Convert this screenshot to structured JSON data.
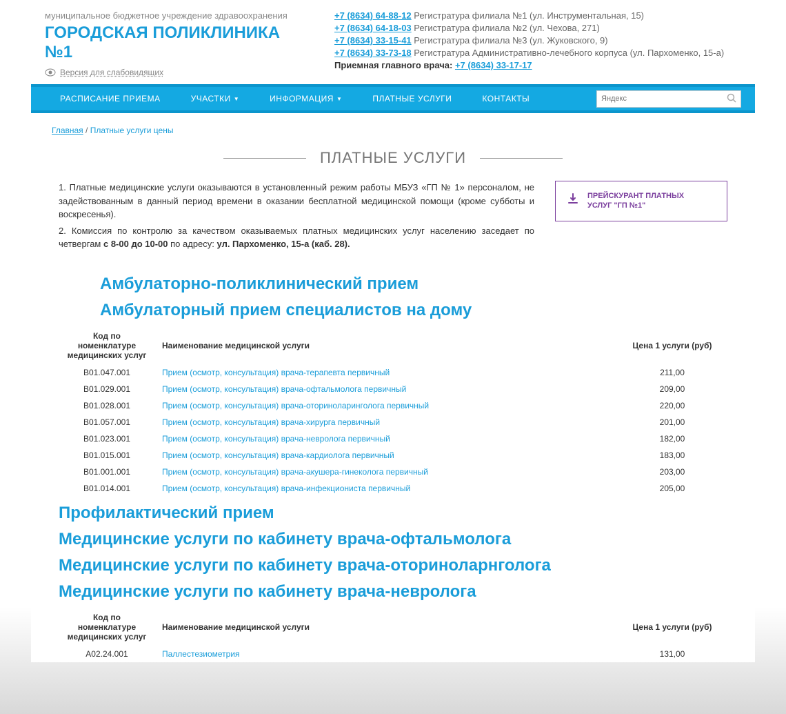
{
  "header": {
    "org_type": "муниципальное бюджетное учреждение здравоохранения",
    "org_name": "ГОРОДСКАЯ ПОЛИКЛИНИКА №1",
    "vis_label": "Версия для слабовидящих",
    "phones": [
      {
        "num": "+7 (8634) 64-88-12",
        "desc": "Регистратура филиала №1 (ул. Инструментальная, 15)"
      },
      {
        "num": "+7 (8634) 64-18-03",
        "desc": "Регистратура филиала №2 (ул. Чехова, 271)"
      },
      {
        "num": "+7 (8634) 33-15-41",
        "desc": "Регистратура филиала №3 (ул. Жуковского, 9)"
      },
      {
        "num": "+7 (8634) 33-73-18",
        "desc": "Регистратура Административно-лечебного корпуса (ул. Пархоменко, 15-а)"
      }
    ],
    "chief_label": "Приемная главного врача:",
    "chief_phone": "+7 (8634) 33-17-17"
  },
  "nav": {
    "items": [
      {
        "label": "РАСПИСАНИЕ ПРИЕМА",
        "dd": false
      },
      {
        "label": "УЧАСТКИ",
        "dd": true
      },
      {
        "label": "ИНФОРМАЦИЯ",
        "dd": true
      },
      {
        "label": "ПЛАТНЫЕ УСЛУГИ",
        "dd": false
      },
      {
        "label": "КОНТАКТЫ",
        "dd": false
      }
    ],
    "search_placeholder": "Яндекс"
  },
  "crumbs": {
    "home": "Главная",
    "sep": "/",
    "current": "Платные услуги цены"
  },
  "page_title": "ПЛАТНЫЕ УСЛУГИ",
  "intro": {
    "p1": "1. Платные медицинские услуги оказываются в установленный режим работы МБУЗ «ГП № 1» персоналом, не задействованным в данный период времени в оказании бесплатной медицинской помощи (кроме субботы и воскресенья).",
    "p2a": "2. Комиссия по контролю за качеством оказываемых платных медицинских услуг населению заседает по четвергам ",
    "p2b": "с 8‑00 до 10‑00",
    "p2c": " по адресу: ",
    "p2d": "ул. Пархоменко, 15‑а (каб. 28)."
  },
  "price_button": {
    "line1": "ПРЕЙСКУРАНТ ПЛАТНЫХ",
    "line2": "УСЛУГ \"ГП №1\""
  },
  "table_headers": {
    "col1": "Код по номенклатуре медицинских услуг",
    "col2": "Наименование медицинской услуги",
    "col3": "Цена 1 услуги (руб)"
  },
  "sections": [
    {
      "title": "Амбулаторно-поликлинический прием",
      "pad": true
    },
    {
      "title": "Амбулаторный прием специалистов на дому",
      "pad": true,
      "rows": [
        {
          "code": "В01.047.001",
          "name": "Прием (осмотр, консультация) врача-терапевта первичный",
          "price": "211,00"
        },
        {
          "code": "В01.029.001",
          "name": "Прием (осмотр, консультация) врача-офтальмолога первичный",
          "price": "209,00"
        },
        {
          "code": "В01.028.001",
          "name": "Прием (осмотр, консультация) врача-оториноларинголога первичный",
          "price": "220,00"
        },
        {
          "code": "В01.057.001",
          "name": "Прием (осмотр, консультация) врача-хирурга первичный",
          "price": "201,00"
        },
        {
          "code": "В01.023.001",
          "name": "Прием (осмотр, консультация) врача-невролога первичный",
          "price": "182,00"
        },
        {
          "code": "В01.015.001",
          "name": "Прием (осмотр, консультация) врача-кардиолога первичный",
          "price": "183,00"
        },
        {
          "code": "В01.001.001",
          "name": "Прием (осмотр, консультация) врача-акушера-гинеколога первичный",
          "price": "203,00"
        },
        {
          "code": "В01.014.001",
          "name": "Прием (осмотр, консультация) врача-инфекциониста первичный",
          "price": "205,00"
        }
      ]
    },
    {
      "title": "Профилактический прием",
      "pad": false
    },
    {
      "title": "Медицинские услуги по кабинету врача-офтальмолога",
      "pad": false
    },
    {
      "title": "Медицинские услуги по кабинету врача-оториноларнголога",
      "pad": false
    },
    {
      "title": "Медицинские услуги по кабинету врача-невролога",
      "pad": false,
      "rows": [
        {
          "code": "А02.24.001",
          "name": "Паллестезиометрия",
          "price": "131,00"
        }
      ]
    }
  ],
  "colors": {
    "accent": "#1a9dd9",
    "nav_bg": "#14a9e2",
    "purple": "#7b3f9e",
    "text_muted": "#888"
  }
}
